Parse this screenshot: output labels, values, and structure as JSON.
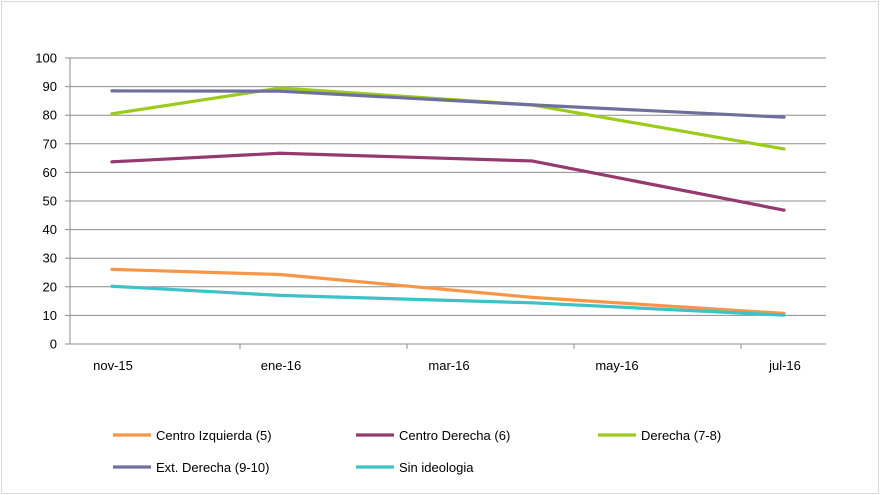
{
  "chart_data": {
    "type": "line",
    "title": "",
    "xlabel": "",
    "ylabel": "",
    "ylim": [
      0,
      100
    ],
    "yticks": [
      "0",
      "10",
      "20",
      "30",
      "40",
      "50",
      "60",
      "70",
      "80",
      "90",
      "100"
    ],
    "xtick_labels": [
      "nov-15",
      "ene-16",
      "mar-16",
      "may-16",
      "jul-16"
    ],
    "x": [
      "nov-15",
      "ene-16",
      "abr-16",
      "jul-16"
    ],
    "x_month_index": [
      0,
      2,
      5,
      8
    ],
    "grid": true,
    "legend_placement": "bottom",
    "series": [
      {
        "name": "Centro Izquierda (5)",
        "color": "#f79646",
        "values": [
          26.1,
          24.3,
          16.3,
          10.7
        ]
      },
      {
        "name": "Centro Derecha (6)",
        "color": "#953a6e",
        "values": [
          63.7,
          66.7,
          64.0,
          46.8
        ]
      },
      {
        "name": "Derecha (7-8)",
        "color": "#9bcb1c",
        "values": [
          80.5,
          89.5,
          83.6,
          68.2
        ]
      },
      {
        "name": "Ext. Derecha (9-10)",
        "color": "#6f6f9e",
        "values": [
          88.5,
          88.4,
          83.6,
          79.3
        ]
      },
      {
        "name": "Sin ideologia",
        "color": "#3cc3c8",
        "values": [
          20.2,
          17.0,
          14.4,
          10.1
        ]
      }
    ]
  }
}
